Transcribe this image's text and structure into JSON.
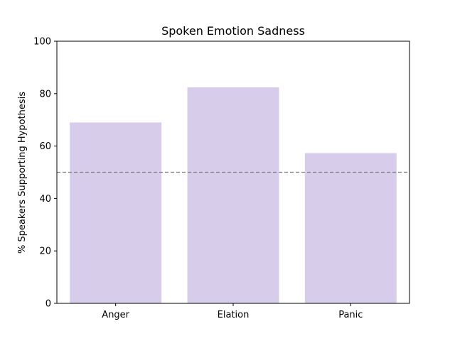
{
  "chart_data": {
    "type": "bar",
    "title": "Spoken Emotion Sadness",
    "xlabel": "",
    "ylabel": "% Speakers Supporting Hypothesis",
    "categories": [
      "Anger",
      "Elation",
      "Panic"
    ],
    "values": [
      69,
      82.4,
      57.3
    ],
    "ylim": [
      0,
      100
    ],
    "yticks": [
      0,
      20,
      40,
      60,
      80,
      100
    ],
    "reference_line": 50,
    "grid": false,
    "legend": "none",
    "bar_color": "#d8cceb",
    "reference_line_color": "#808080"
  }
}
